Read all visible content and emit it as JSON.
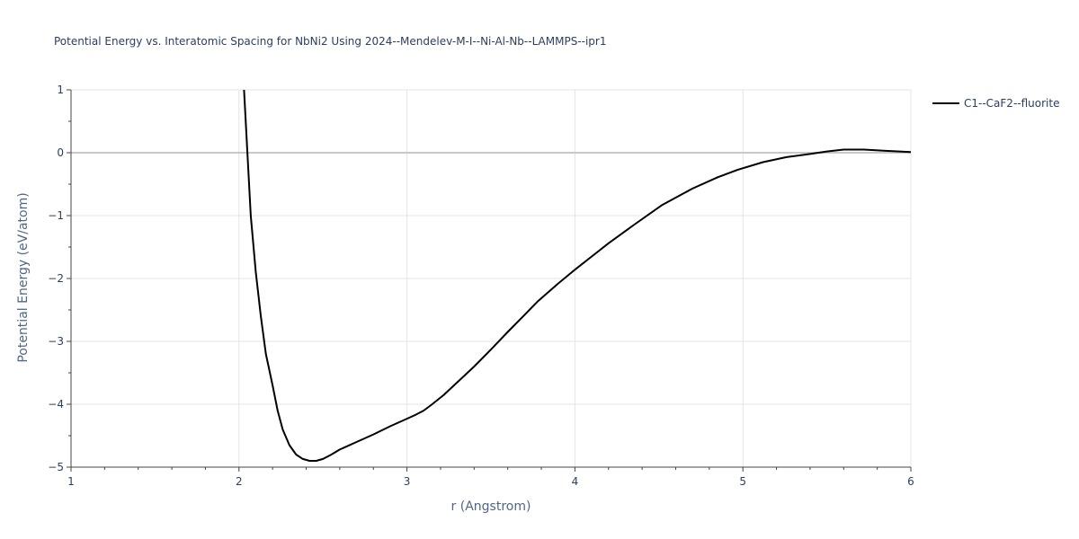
{
  "chart_data": {
    "type": "line",
    "title": "Potential Energy vs. Interatomic Spacing for NbNi2 Using 2024--Mendelev-M-I--Ni-Al-Nb--LAMMPS--ipr1",
    "xlabel": "r (Angstrom)",
    "ylabel": "Potential Energy (eV/atom)",
    "xlim": [
      1,
      6
    ],
    "ylim": [
      -5,
      1
    ],
    "xticks": [
      1,
      2,
      3,
      4,
      5,
      6
    ],
    "xtick_labels": [
      "1",
      "2",
      "3",
      "4",
      "5",
      "6"
    ],
    "yticks": [
      1,
      0,
      -1,
      -2,
      -3,
      -4,
      -5
    ],
    "ytick_labels": [
      "1",
      "0",
      "−1",
      "−2",
      "−3",
      "−4",
      "−5"
    ],
    "grid": true,
    "legend_position": "top-right outside",
    "series": [
      {
        "name": "C1--CaF2--fluorite",
        "color": "#000000",
        "x": [
          2.03,
          2.05,
          2.07,
          2.1,
          2.13,
          2.16,
          2.2,
          2.23,
          2.26,
          2.3,
          2.34,
          2.38,
          2.42,
          2.46,
          2.5,
          2.55,
          2.6,
          2.7,
          2.8,
          2.9,
          3.0,
          3.05,
          3.1,
          3.15,
          3.22,
          3.3,
          3.4,
          3.5,
          3.6,
          3.7,
          3.78,
          3.9,
          4.0,
          4.1,
          4.2,
          4.35,
          4.52,
          4.7,
          4.85,
          4.97,
          5.12,
          5.26,
          5.4,
          5.5,
          5.6,
          5.72,
          5.85,
          6.0
        ],
        "y": [
          1.0,
          0.0,
          -1.0,
          -1.9,
          -2.6,
          -3.2,
          -3.7,
          -4.1,
          -4.4,
          -4.65,
          -4.8,
          -4.87,
          -4.9,
          -4.9,
          -4.87,
          -4.8,
          -4.72,
          -4.6,
          -4.48,
          -4.35,
          -4.23,
          -4.17,
          -4.1,
          -4.0,
          -3.85,
          -3.65,
          -3.4,
          -3.13,
          -2.85,
          -2.58,
          -2.36,
          -2.08,
          -1.86,
          -1.65,
          -1.44,
          -1.15,
          -0.83,
          -0.57,
          -0.39,
          -0.27,
          -0.15,
          -0.07,
          -0.02,
          0.02,
          0.05,
          0.05,
          0.03,
          0.01
        ]
      }
    ]
  }
}
